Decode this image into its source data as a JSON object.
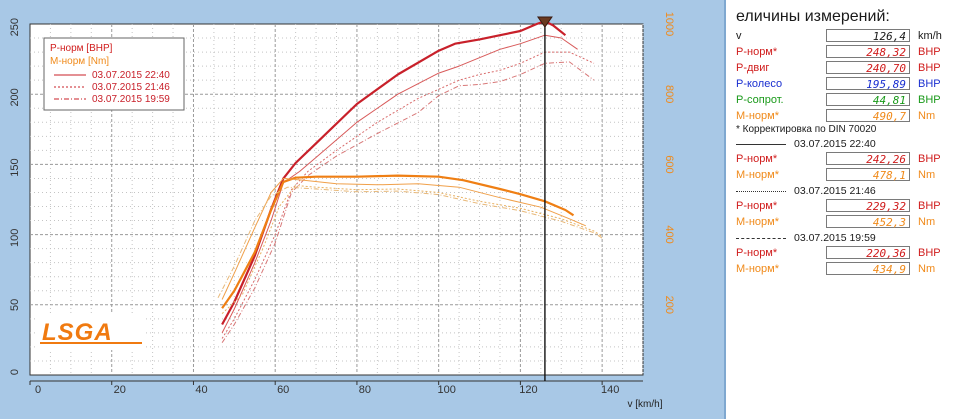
{
  "chart_data": {
    "type": "line",
    "xlabel": "v [km/h]",
    "x_axis": {
      "range": [
        0,
        150
      ],
      "ticks": [
        0,
        20,
        40,
        60,
        80,
        100,
        120,
        140
      ]
    },
    "y_left": {
      "range": [
        0,
        250
      ],
      "ticks": [
        0,
        50,
        100,
        150,
        200,
        250
      ]
    },
    "y_right": {
      "range": [
        0,
        1000
      ],
      "ticks": [
        200,
        400,
        600,
        800,
        1000
      ]
    },
    "grid": true,
    "cursor_x": 126,
    "legend": {
      "position": "top-left",
      "title_power": "P-норм [BHP]",
      "title_torque": "M-норм [Nm]",
      "entries": [
        "03.07.2015 22:40",
        "03.07.2015 21:46",
        "03.07.2015 19:59"
      ]
    },
    "logo_text": "LSGA",
    "series": [
      {
        "group": "power",
        "run": 0,
        "axis": "left",
        "color": "#c8202a",
        "dash": "",
        "width": 2.2,
        "points": [
          [
            47,
            36
          ],
          [
            50,
            52
          ],
          [
            55,
            85
          ],
          [
            59,
            118
          ],
          [
            62,
            140
          ],
          [
            65,
            151
          ],
          [
            70,
            165
          ],
          [
            80,
            193
          ],
          [
            90,
            214
          ],
          [
            100,
            231
          ],
          [
            104,
            236
          ],
          [
            110,
            239
          ],
          [
            115,
            242
          ],
          [
            120,
            245
          ],
          [
            124,
            250
          ],
          [
            126,
            252
          ],
          [
            128,
            249
          ],
          [
            131,
            242
          ]
        ]
      },
      {
        "group": "power",
        "run": 1,
        "axis": "left",
        "color": "#d85a5a",
        "dash": "",
        "width": 1,
        "points": [
          [
            47,
            30
          ],
          [
            50,
            47
          ],
          [
            55,
            80
          ],
          [
            59,
            110
          ],
          [
            62,
            137
          ],
          [
            66,
            145
          ],
          [
            70,
            155
          ],
          [
            80,
            180
          ],
          [
            90,
            200
          ],
          [
            100,
            215
          ],
          [
            105,
            220
          ],
          [
            110,
            226
          ],
          [
            115,
            232
          ],
          [
            120,
            236
          ],
          [
            126,
            242
          ],
          [
            130,
            240
          ],
          [
            134,
            232
          ]
        ]
      },
      {
        "group": "power",
        "run": 2,
        "axis": "left",
        "color": "#d86a6a",
        "dash": "2,2",
        "width": 1,
        "points": [
          [
            47,
            26
          ],
          [
            50,
            40
          ],
          [
            55,
            68
          ],
          [
            60,
            100
          ],
          [
            64,
            132
          ],
          [
            68,
            145
          ],
          [
            75,
            160
          ],
          [
            85,
            180
          ],
          [
            95,
            197
          ],
          [
            105,
            210
          ],
          [
            110,
            214
          ],
          [
            115,
            217
          ],
          [
            120,
            222
          ],
          [
            126,
            230
          ],
          [
            132,
            230
          ],
          [
            138,
            222
          ]
        ]
      },
      {
        "group": "power",
        "run": 3,
        "axis": "left",
        "color": "#d87878",
        "dash": "5,2,1,2",
        "width": 1,
        "points": [
          [
            47,
            23
          ],
          [
            50,
            36
          ],
          [
            55,
            62
          ],
          [
            60,
            94
          ],
          [
            64,
            130
          ],
          [
            68,
            142
          ],
          [
            75,
            156
          ],
          [
            85,
            172
          ],
          [
            95,
            187
          ],
          [
            100,
            199
          ],
          [
            105,
            206
          ],
          [
            110,
            207
          ],
          [
            115,
            209
          ],
          [
            120,
            214
          ],
          [
            126,
            222
          ],
          [
            132,
            223
          ],
          [
            138,
            210
          ]
        ]
      },
      {
        "group": "torque",
        "run": 0,
        "axis": "right",
        "color": "#ef7f14",
        "dash": "",
        "width": 2.2,
        "points": [
          [
            47,
            190
          ],
          [
            50,
            240
          ],
          [
            55,
            350
          ],
          [
            59,
            470
          ],
          [
            62,
            550
          ],
          [
            65,
            562
          ],
          [
            70,
            565
          ],
          [
            80,
            565
          ],
          [
            90,
            568
          ],
          [
            100,
            565
          ],
          [
            106,
            555
          ],
          [
            115,
            530
          ],
          [
            120,
            515
          ],
          [
            126,
            495
          ],
          [
            131,
            470
          ],
          [
            133,
            455
          ]
        ]
      },
      {
        "group": "torque",
        "run": 1,
        "axis": "right",
        "color": "#f0a04a",
        "dash": "",
        "width": 1,
        "points": [
          [
            47,
            215
          ],
          [
            50,
            290
          ],
          [
            55,
            420
          ],
          [
            59,
            520
          ],
          [
            62,
            560
          ],
          [
            67,
            555
          ],
          [
            75,
            545
          ],
          [
            85,
            542
          ],
          [
            95,
            545
          ],
          [
            105,
            535
          ],
          [
            115,
            505
          ],
          [
            125,
            478
          ],
          [
            132,
            445
          ],
          [
            136,
            425
          ]
        ]
      },
      {
        "group": "torque",
        "run": 2,
        "axis": "right",
        "color": "#e8b060",
        "dash": "2,2",
        "width": 1,
        "points": [
          [
            47,
            175
          ],
          [
            52,
            230
          ],
          [
            57,
            360
          ],
          [
            61,
            480
          ],
          [
            65,
            540
          ],
          [
            70,
            535
          ],
          [
            80,
            528
          ],
          [
            90,
            530
          ],
          [
            100,
            520
          ],
          [
            110,
            495
          ],
          [
            120,
            475
          ],
          [
            130,
            445
          ],
          [
            138,
            410
          ],
          [
            140,
            395
          ]
        ]
      },
      {
        "group": "torque",
        "run": 3,
        "axis": "right",
        "color": "#e8b878",
        "dash": "5,2,1,2",
        "width": 1,
        "points": [
          [
            46,
            220
          ],
          [
            50,
            310
          ],
          [
            55,
            440
          ],
          [
            59,
            510
          ],
          [
            63,
            535
          ],
          [
            70,
            530
          ],
          [
            80,
            522
          ],
          [
            90,
            524
          ],
          [
            100,
            514
          ],
          [
            110,
            488
          ],
          [
            120,
            468
          ],
          [
            130,
            438
          ],
          [
            138,
            405
          ],
          [
            140,
            390
          ]
        ]
      }
    ]
  },
  "readout": {
    "title": "еличины измерений:",
    "current": [
      {
        "label": "v",
        "value": "126,4",
        "unit": "km/h",
        "color": "black"
      },
      {
        "label": "P-норм*",
        "value": "248,32",
        "unit": "BHP",
        "color": "red"
      },
      {
        "label": "P-двиг",
        "value": "240,70",
        "unit": "BHP",
        "color": "red"
      },
      {
        "label": "P-колесо",
        "value": "195,89",
        "unit": "BHP",
        "color": "blue"
      },
      {
        "label": "P-сопрот.",
        "value": "44,81",
        "unit": "BHP",
        "color": "green"
      },
      {
        "label": "M-норм*",
        "value": "490,7",
        "unit": "Nm",
        "color": "orange"
      }
    ],
    "note": "* Корректировка по DIN 70020",
    "runs": [
      {
        "date": "03.07.2015 22:40",
        "power": {
          "label": "P-норм*",
          "value": "242,26",
          "unit": "BHP"
        },
        "torque": {
          "label": "M-норм*",
          "value": "478,1",
          "unit": "Nm"
        }
      },
      {
        "date": "03.07.2015 21:46",
        "power": {
          "label": "P-норм*",
          "value": "229,32",
          "unit": "BHP"
        },
        "torque": {
          "label": "M-норм*",
          "value": "452,3",
          "unit": "Nm"
        }
      },
      {
        "date": "03.07.2015 19:59",
        "power": {
          "label": "P-норм*",
          "value": "220,36",
          "unit": "BHP"
        },
        "torque": {
          "label": "M-норм*",
          "value": "434,9",
          "unit": "Nm"
        }
      }
    ]
  }
}
